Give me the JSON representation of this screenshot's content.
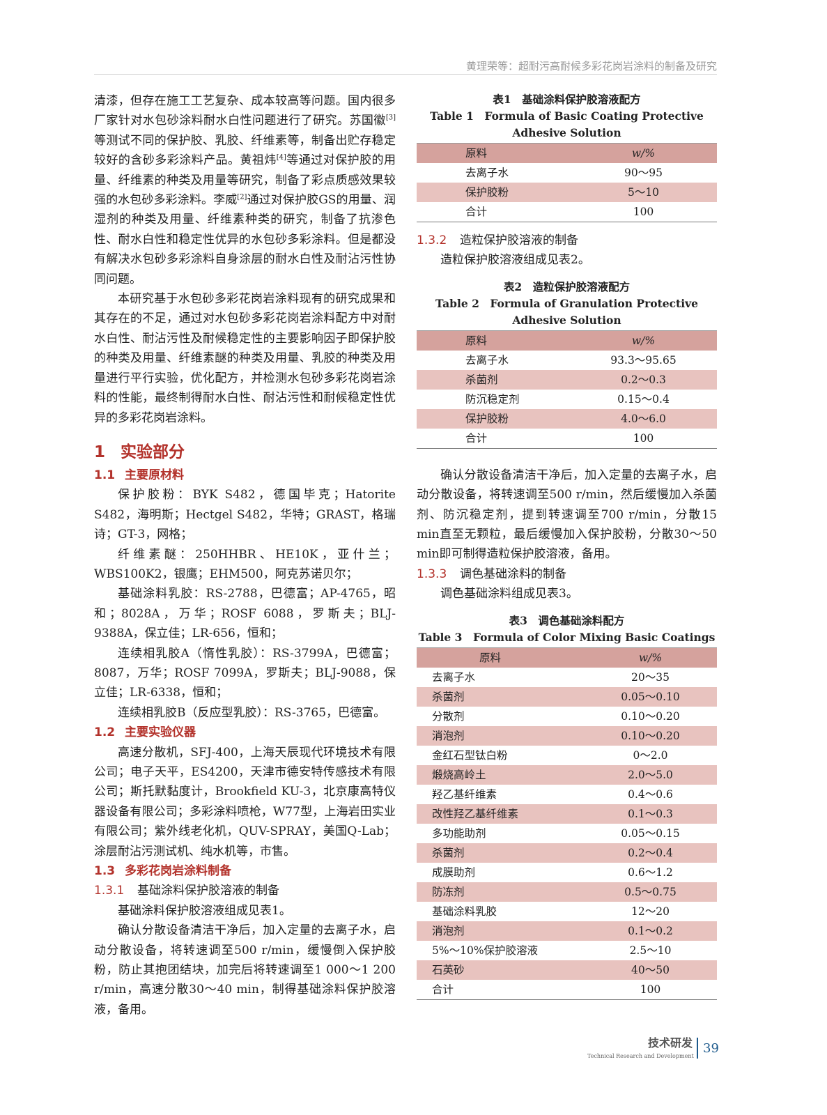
{
  "header": {
    "running_title": "黄理荣等：超耐污高耐候多彩花岗岩涂料的制备及研究"
  },
  "left": {
    "para1": [
      "清漆，但存在施工工艺复杂、成本较高等问题。国内很多厂家针对水包砂涂料耐水白性问题进行了研究。苏国徽",
      "[3]",
      "等测试不同的保护胶、乳胶、纤维素等，制备出贮存稳定较好的含砂多彩涂料产品。黄祖炜",
      "[4]",
      "等通过对保护胶的用量、纤维素的种类及用量等研究，制备了彩点质感效果较强的水包砂多彩涂料。李威",
      "[2]",
      "通过对保护胶GS的用量、润湿剂的种类及用量、纤维素种类的研究，制备了抗渗色性、耐水白性和稳定性优异的水包砂多彩涂料。但是都没有解决水包砂多彩涂料自身涂层的耐水白性及耐沾污性协同问题。"
    ],
    "para2": "本研究基于水包砂多彩花岗岩涂料现有的研究成果和其存在的不足，通过对水包砂多彩花岗岩涂料配方中对耐水白性、耐沾污性及耐候稳定性的主要影响因子即保护胶的种类及用量、纤维素醚的种类及用量、乳胶的种类及用量进行平行实验，优化配方，并检测水包砂多彩花岗岩涂料的性能，最终制得耐水白性、耐沾污性和耐候稳定性优异的多彩花岗岩涂料。",
    "sec1": {
      "num": "1",
      "title": "实验部分"
    },
    "sec1_1": {
      "num": "1.1",
      "title": "主要原材料"
    },
    "materials": [
      "保护胶粉：BYK S482，德国毕克；Hatorite S482，海明斯；Hectgel S482，华特；GRAST，格瑞诗；GT-3，网格；",
      "纤维素醚：250HHBR、HE10K，亚什兰；WBS100K2，银鹰；EHM500，阿克苏诺贝尔；",
      "基础涂料乳胶：RS-2788，巴德富；AP-4765，昭和；8028A，万华；ROSF 6088，罗斯夫；BLJ-9388A，保立佳；LR-656，恒和；",
      "连续相乳胶A（惰性乳胶）：RS-3799A，巴德富；8087，万华；ROSF 7099A，罗斯夫；BLJ-9088，保立佳；LR-6338，恒和；",
      "连续相乳胶B（反应型乳胶）：RS-3765，巴德富。"
    ],
    "sec1_2": {
      "num": "1.2",
      "title": "主要实验仪器"
    },
    "instruments": "高速分散机，SFJ-400，上海天辰现代环境技术有限公司；电子天平，ES4200，天津市德安特传感技术有限公司；斯托默黏度计，Brookfield KU-3，北京康高特仪器设备有限公司；多彩涂料喷枪，W77型，上海岩田实业有限公司；紫外线老化机，QUV-SPRAY，美国Q-Lab；涂层耐沾污测试机、纯水机等，市售。",
    "sec1_3": {
      "num": "1.3",
      "title": "多彩花岗岩涂料制备"
    },
    "sec1_3_1": {
      "num": "1.3.1",
      "title": "基础涂料保护胶溶液的制备"
    },
    "p131a": "基础涂料保护胶溶液组成见表1。",
    "p131b": "确认分散设备清洁干净后，加入定量的去离子水，启动分散设备，将转速调至500 r/min，缓慢倒入保护胶粉，防止其抱团结块，加完后将转速调至1 000～1 200 r/min，高速分散30～40 min，制得基础涂料保护胶溶液，备用。"
  },
  "right": {
    "table1": {
      "cap_cn": "表1　基础涂料保护胶溶液配方",
      "cap_en": "Table 1　Formula of Basic Coating Protective Adhesive Solution",
      "headers": [
        "原料",
        "w/%"
      ],
      "rows": [
        [
          "去离子水",
          "90～95"
        ],
        [
          "保护胶粉",
          "5～10"
        ],
        [
          "合计",
          "100"
        ]
      ]
    },
    "sec1_3_2": {
      "num": "1.3.2",
      "title": "造粒保护胶溶液的制备"
    },
    "p132a": "造粒保护胶溶液组成见表2。",
    "table2": {
      "cap_cn": "表2　造粒保护胶溶液配方",
      "cap_en": "Table 2　Formula of Granulation Protective Adhesive Solution",
      "headers": [
        "原料",
        "w/%"
      ],
      "rows": [
        [
          "去离子水",
          "93.3～95.65"
        ],
        [
          "杀菌剂",
          "0.2～0.3"
        ],
        [
          "防沉稳定剂",
          "0.15～0.4"
        ],
        [
          "保护胶粉",
          "4.0～6.0"
        ],
        [
          "合计",
          "100"
        ]
      ]
    },
    "p132b": "确认分散设备清洁干净后，加入定量的去离子水，启动分散设备，将转速调至500 r/min，然后缓慢加入杀菌剂、防沉稳定剂，提到转速调至700 r/min，分散15 min直至无颗粒，最后缓慢加入保护胶粉，分散30～50 min即可制得造粒保护胶溶液，备用。",
    "sec1_3_3": {
      "num": "1.3.3",
      "title": "调色基础涂料的制备"
    },
    "p133": "调色基础涂料组成见表3。",
    "table3": {
      "cap_cn": "表3　调色基础涂料配方",
      "cap_en": "Table 3　Formula of Color Mixing Basic Coatings",
      "headers": [
        "原料",
        "w/%"
      ],
      "rows": [
        [
          "去离子水",
          "20～35"
        ],
        [
          "杀菌剂",
          "0.05～0.10"
        ],
        [
          "分散剂",
          "0.10～0.20"
        ],
        [
          "消泡剂",
          "0.10～0.20"
        ],
        [
          "金红石型钛白粉",
          "0～2.0"
        ],
        [
          "煅烧高岭土",
          "2.0～5.0"
        ],
        [
          "羟乙基纤维素",
          "0.4～0.6"
        ],
        [
          "改性羟乙基纤维素",
          "0.1～0.3"
        ],
        [
          "多功能助剂",
          "0.05～0.15"
        ],
        [
          "杀菌剂",
          "0.2～0.4"
        ],
        [
          "成膜助剂",
          "0.6～1.2"
        ],
        [
          "防冻剂",
          "0.5～0.75"
        ],
        [
          "基础涂料乳胶",
          "12～20"
        ],
        [
          "消泡剂",
          "0.1～0.2"
        ],
        [
          "5%～10%保护胶溶液",
          "2.5～10"
        ],
        [
          "石英砂",
          "40～50"
        ],
        [
          "合计",
          "100"
        ]
      ]
    }
  },
  "footer": {
    "section_cn": "技术研发",
    "section_en": "Technical Research and Development",
    "page": "39"
  },
  "colors": {
    "heading": "#b3322b",
    "table_header": "#d5a29d",
    "table_alt": "#e8c3bf",
    "page_num": "#1d5a8c"
  }
}
